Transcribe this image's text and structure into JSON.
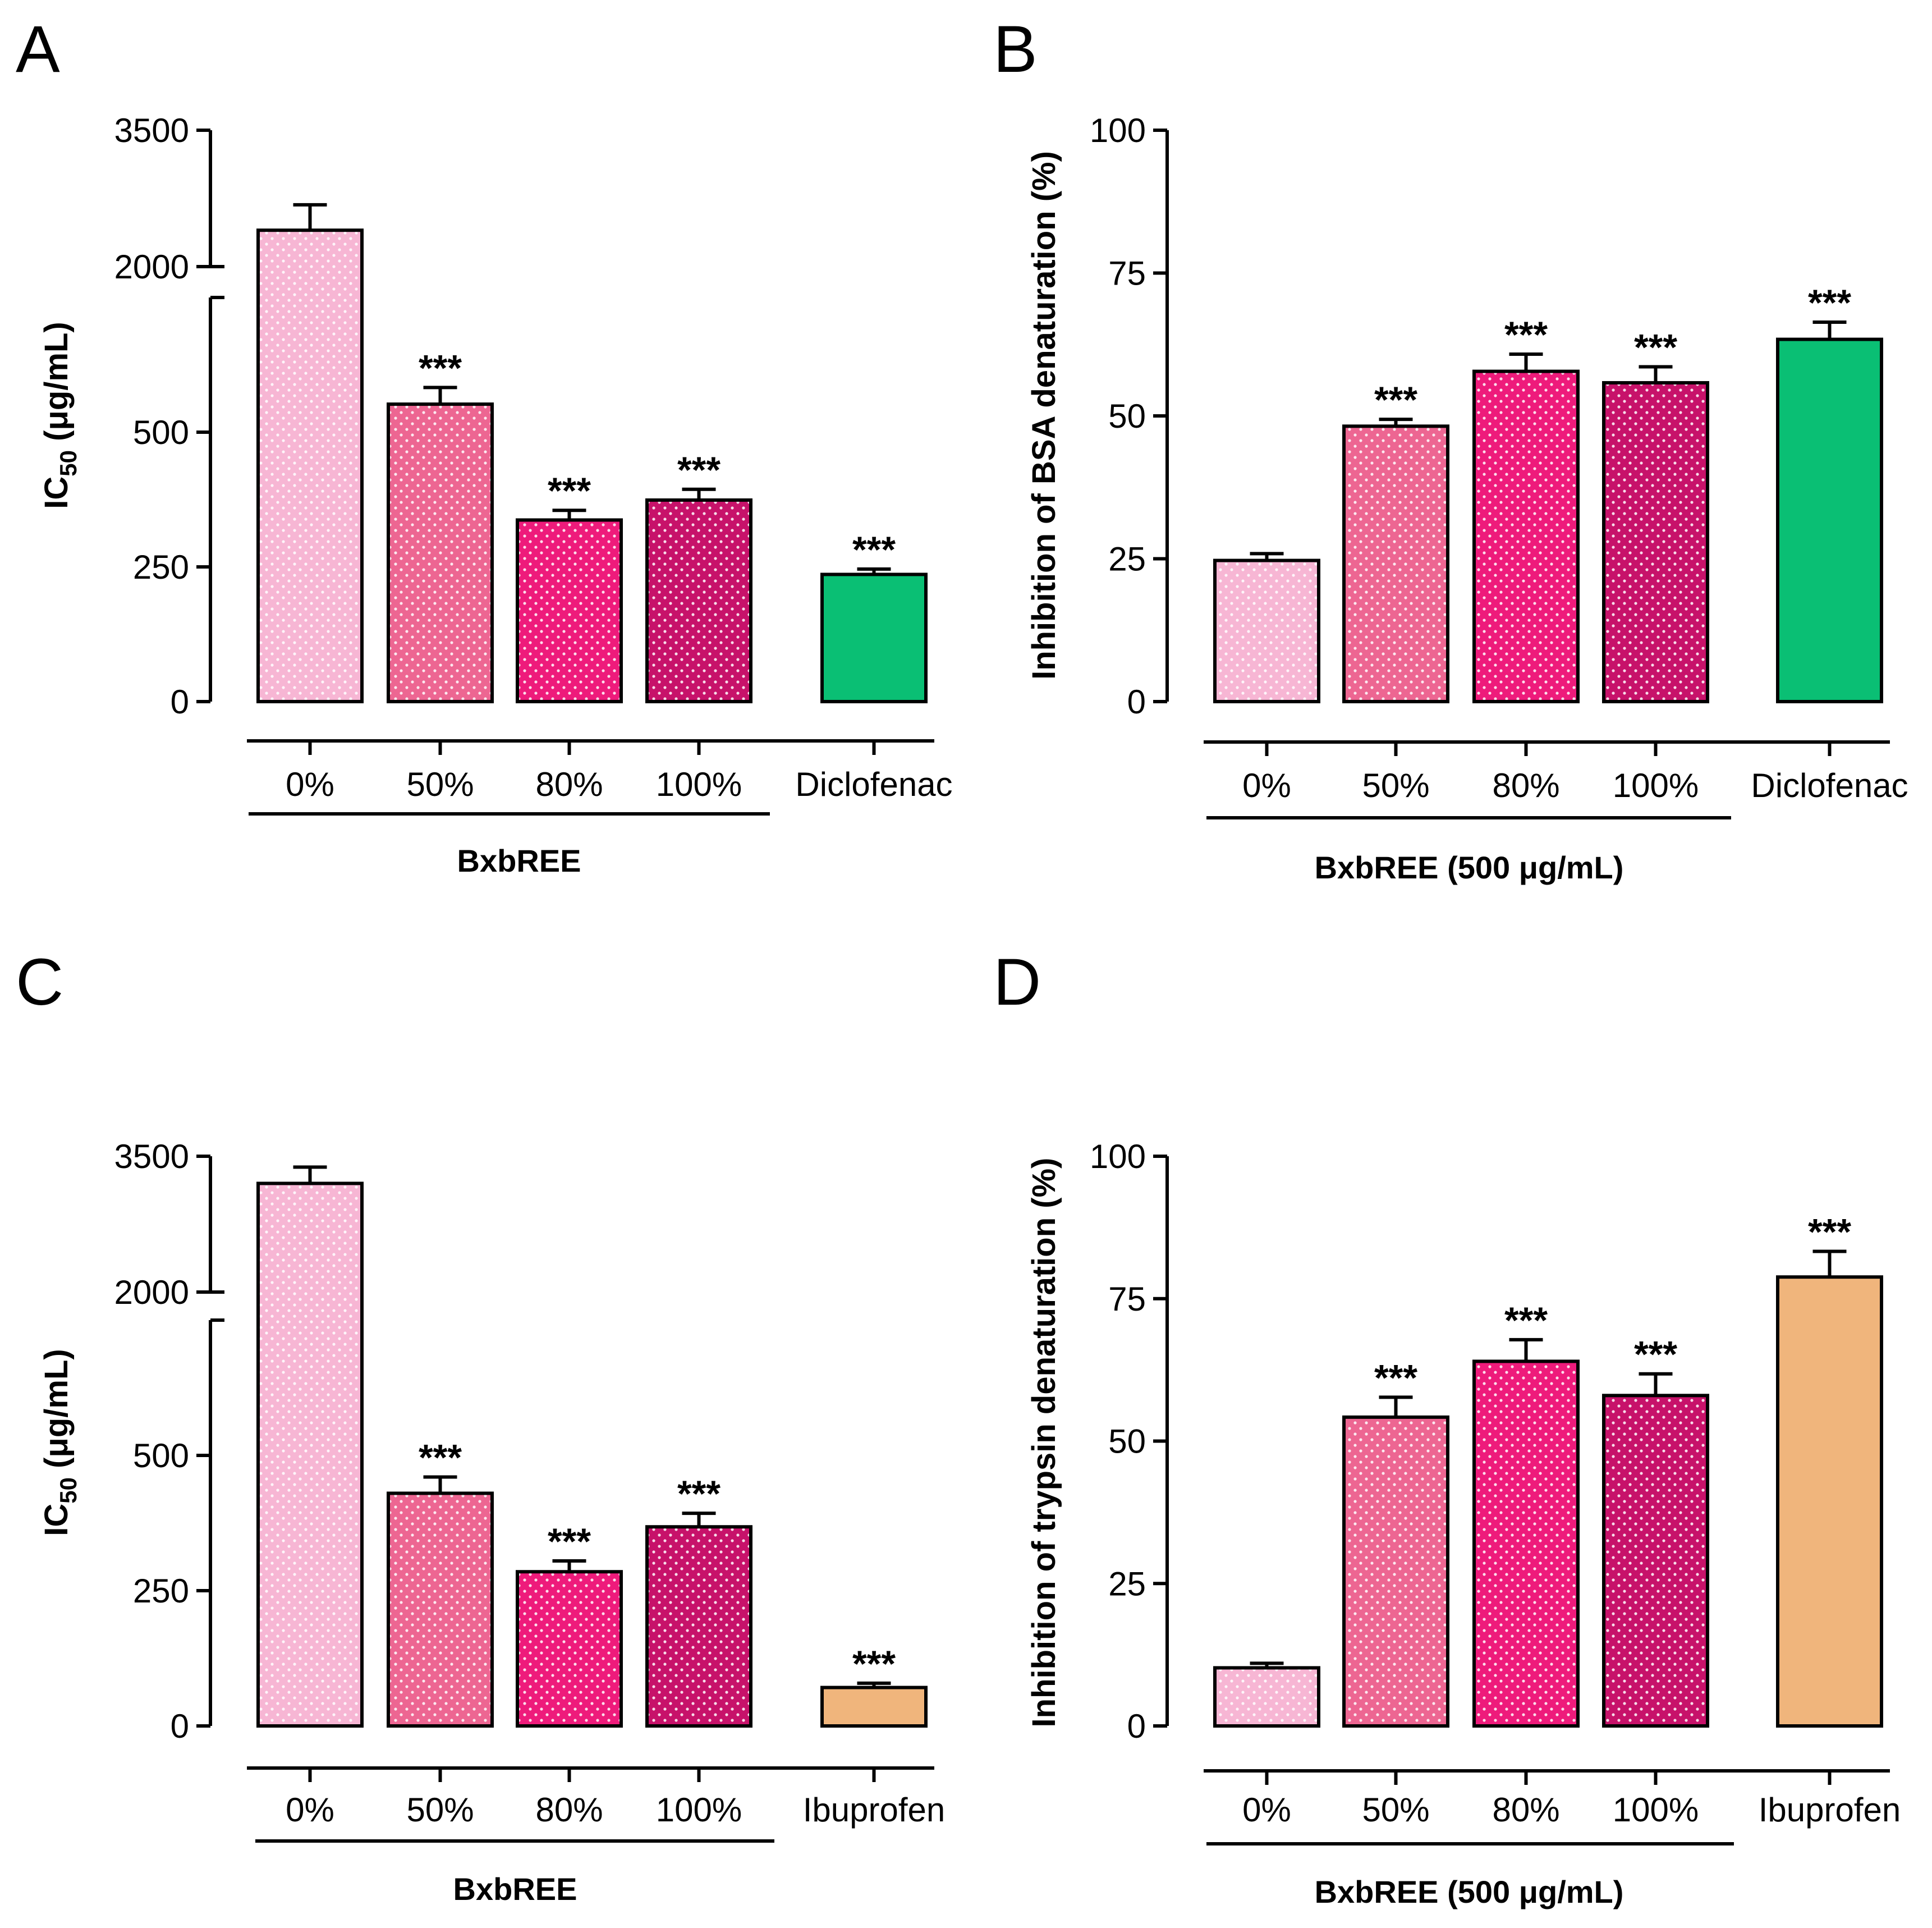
{
  "colors": {
    "c0": "#F7B6D4",
    "c50": "#ED6692",
    "c80": "#EE1B7B",
    "c100": "#C7126A",
    "diclofenac": "#0ABF74",
    "ibuprofen": "#F0B57C"
  },
  "chart_data": [
    {
      "panel": "A",
      "type": "bar",
      "ylabel_main": "IC",
      "ylabel_sub": "50",
      "ylabel_rest": " (μg/mL)",
      "broken_axis": true,
      "lower_range": [
        0,
        750
      ],
      "upper_range": [
        2000,
        3500
      ],
      "yticks": [
        "3500",
        "2000",
        "500",
        "250",
        "0"
      ],
      "categories": [
        "0%",
        "50%",
        "80%",
        "100%",
        "Diclofenac"
      ],
      "values": [
        2400,
        552,
        337,
        374,
        236
      ],
      "errors": [
        280,
        31,
        18,
        20,
        10
      ],
      "significance": [
        "",
        "***",
        "***",
        "***",
        "***"
      ],
      "color_keys": [
        "c0",
        "c50",
        "c80",
        "c100",
        "diclofenac"
      ],
      "group_label": "BxbREE"
    },
    {
      "panel": "B",
      "type": "bar",
      "ylabel": "Inhibition of BSA denaturation (%)",
      "broken_axis": false,
      "ylim": [
        0,
        100
      ],
      "yticks": [
        "100",
        "75",
        "50",
        "25",
        "0"
      ],
      "categories": [
        "0%",
        "50%",
        "80%",
        "100%",
        "Diclofenac"
      ],
      "values": [
        24.7,
        48.2,
        57.8,
        55.8,
        63.4
      ],
      "errors": [
        1.2,
        1.2,
        3.0,
        2.8,
        3.0
      ],
      "significance": [
        "",
        "***",
        "***",
        "***",
        "***"
      ],
      "color_keys": [
        "c0",
        "c50",
        "c80",
        "c100",
        "diclofenac"
      ],
      "group_label": "BxbREE (500 μg/mL)"
    },
    {
      "panel": "C",
      "type": "bar",
      "ylabel_main": "IC",
      "ylabel_sub": "50",
      "ylabel_rest": " (μg/mL)",
      "broken_axis": true,
      "lower_range": [
        0,
        750
      ],
      "upper_range": [
        2000,
        3500
      ],
      "yticks": [
        "3500",
        "2000",
        "500",
        "250",
        "0"
      ],
      "categories": [
        "0%",
        "50%",
        "80%",
        "100%",
        "Ibuprofen"
      ],
      "values": [
        3200,
        430,
        285,
        368,
        71
      ],
      "errors": [
        180,
        30,
        20,
        25,
        8
      ],
      "significance": [
        "",
        "***",
        "***",
        "***",
        "***"
      ],
      "color_keys": [
        "c0",
        "c50",
        "c80",
        "c100",
        "ibuprofen"
      ],
      "group_label": "BxbREE"
    },
    {
      "panel": "D",
      "type": "bar",
      "ylabel": "Inhibition of trypsin  denaturation (%)",
      "broken_axis": false,
      "ylim": [
        0,
        100
      ],
      "yticks": [
        "100",
        "75",
        "50",
        "25",
        "0"
      ],
      "categories": [
        "0%",
        "50%",
        "80%",
        "100%",
        "Ibuprofen"
      ],
      "values": [
        10.2,
        54.2,
        64.0,
        58.0,
        78.8
      ],
      "errors": [
        0.8,
        3.5,
        3.8,
        3.8,
        4.5
      ],
      "significance": [
        "",
        "***",
        "***",
        "***",
        "***"
      ],
      "color_keys": [
        "c0",
        "c50",
        "c80",
        "c100",
        "ibuprofen"
      ],
      "group_label": "BxbREE (500 μg/mL)"
    }
  ]
}
